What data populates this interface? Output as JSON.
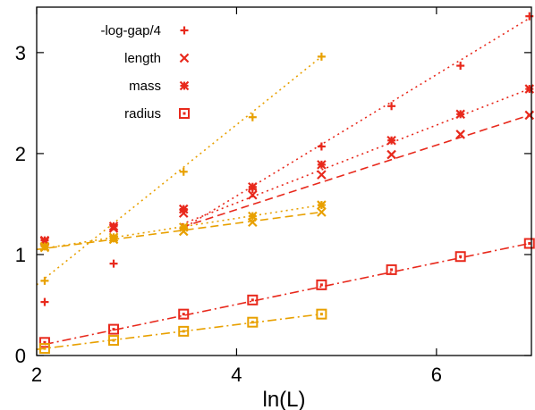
{
  "chart_data": {
    "type": "scatter",
    "title": "",
    "xlabel": "ln(L)",
    "ylabel": "",
    "xlim": [
      2,
      6.95
    ],
    "ylim": [
      0,
      3.45
    ],
    "x_ticks": [
      2,
      4,
      6
    ],
    "x_tick_labels": [
      "2",
      "4",
      "6"
    ],
    "y_ticks": [
      0,
      1,
      2,
      3
    ],
    "y_tick_labels": [
      "0",
      "1",
      "2",
      "3"
    ],
    "grid": false,
    "legend_position": "top-left",
    "legend": [
      {
        "label": "-log-gap/4",
        "marker": "plus",
        "color": "#e8291c"
      },
      {
        "label": "length",
        "marker": "cross",
        "color": "#e8291c"
      },
      {
        "label": "mass",
        "marker": "star",
        "color": "#e8291c"
      },
      {
        "label": "radius",
        "marker": "square",
        "color": "#e8291c"
      }
    ],
    "series": [
      {
        "name": "-log-gap/4",
        "color": "#e8291c",
        "marker": "plus",
        "x": [
          2.08,
          2.77,
          3.47,
          4.16,
          4.85,
          5.55,
          6.24,
          6.93
        ],
        "y": [
          0.53,
          0.91,
          1.26,
          1.65,
          2.07,
          2.47,
          2.87,
          3.36
        ]
      },
      {
        "name": "length",
        "color": "#e8291c",
        "marker": "cross",
        "x": [
          2.08,
          2.77,
          3.47,
          4.16,
          4.85,
          5.55,
          6.24,
          6.93
        ],
        "y": [
          1.13,
          1.26,
          1.41,
          1.59,
          1.79,
          1.99,
          2.19,
          2.38
        ]
      },
      {
        "name": "mass",
        "color": "#e8291c",
        "marker": "star",
        "x": [
          2.08,
          2.77,
          3.47,
          4.16,
          4.85,
          5.55,
          6.24,
          6.93
        ],
        "y": [
          1.14,
          1.28,
          1.45,
          1.67,
          1.89,
          2.13,
          2.39,
          2.64
        ]
      },
      {
        "name": "radius",
        "color": "#e8291c",
        "marker": "square",
        "x": [
          2.08,
          2.77,
          3.47,
          4.16,
          4.85,
          5.55,
          6.24,
          6.93
        ],
        "y": [
          0.13,
          0.26,
          0.41,
          0.55,
          0.7,
          0.85,
          0.98,
          1.11
        ]
      },
      {
        "name": "",
        "color": "#e8a000",
        "marker": "plus",
        "x": [
          2.08,
          2.77,
          3.47,
          4.16,
          4.85
        ],
        "y": [
          0.74,
          1.16,
          1.82,
          2.36,
          2.96
        ]
      },
      {
        "name": "",
        "color": "#e8a000",
        "marker": "cross",
        "x": [
          2.08,
          2.77,
          3.47,
          4.16,
          4.85
        ],
        "y": [
          1.07,
          1.15,
          1.23,
          1.32,
          1.42
        ]
      },
      {
        "name": "",
        "color": "#e8a000",
        "marker": "star",
        "x": [
          2.08,
          2.77,
          3.47,
          4.16,
          4.85
        ],
        "y": [
          1.08,
          1.17,
          1.27,
          1.38,
          1.49
        ]
      },
      {
        "name": "",
        "color": "#e8a000",
        "marker": "square",
        "x": [
          2.08,
          2.77,
          3.47,
          4.16,
          4.85
        ],
        "y": [
          0.07,
          0.15,
          0.24,
          0.33,
          0.41
        ]
      }
    ],
    "fit_lines": [
      {
        "fits": "-log-gap/4",
        "color": "#e8291c",
        "dash": "dotted",
        "x": [
          3.45,
          6.93
        ],
        "y": [
          1.25,
          3.34
        ]
      },
      {
        "fits": "length",
        "color": "#e8291c",
        "dash": "dashed",
        "x": [
          3.45,
          6.93
        ],
        "y": [
          1.27,
          2.38
        ]
      },
      {
        "fits": "mass",
        "color": "#e8291c",
        "dash": "dotted",
        "x": [
          3.45,
          6.93
        ],
        "y": [
          1.3,
          2.64
        ]
      },
      {
        "fits": "radius",
        "color": "#e8291c",
        "dash": "dashdot",
        "x": [
          2.08,
          6.93
        ],
        "y": [
          0.11,
          1.11
        ]
      },
      {
        "fits": "-log-gap/4 (orange)",
        "color": "#e8a000",
        "dash": "dotted",
        "x": [
          2.0,
          4.85
        ],
        "y": [
          0.7,
          2.96
        ]
      },
      {
        "fits": "length (orange)",
        "color": "#e8a000",
        "dash": "dashed",
        "x": [
          2.0,
          4.85
        ],
        "y": [
          1.05,
          1.42
        ]
      },
      {
        "fits": "mass (orange)",
        "color": "#e8a000",
        "dash": "dotted",
        "x": [
          2.0,
          4.85
        ],
        "y": [
          1.05,
          1.49
        ]
      },
      {
        "fits": "radius (orange)",
        "color": "#e8a000",
        "dash": "dashdot",
        "x": [
          2.0,
          4.85
        ],
        "y": [
          0.06,
          0.41
        ]
      }
    ]
  }
}
